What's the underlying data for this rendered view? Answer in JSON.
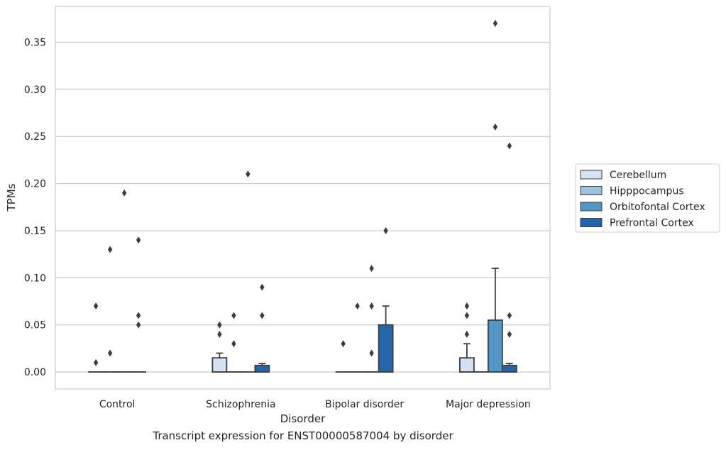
{
  "chart_data": {
    "type": "box",
    "xlabel": "Disorder",
    "ylabel": "TPMs",
    "caption": "Transcript expression for ENST00000587004 by disorder",
    "ylim": [
      -0.018,
      0.388
    ],
    "yticks": [
      0.0,
      0.05,
      0.1,
      0.15,
      0.2,
      0.25,
      0.3,
      0.35
    ],
    "ytick_labels": [
      "0.00",
      "0.05",
      "0.10",
      "0.15",
      "0.20",
      "0.25",
      "0.30",
      "0.35"
    ],
    "grid": "horizontal",
    "legend_position": "right",
    "categories": [
      "Control",
      "Schizophrenia",
      "Bipolar disorder",
      "Major depression"
    ],
    "series": [
      {
        "name": "Cerebellum",
        "color": "#d4e3f2",
        "boxes": [
          {
            "q1": 0,
            "median": 0,
            "q3": 0,
            "whisker_low": 0,
            "whisker_high": 0,
            "outliers": [
              0.07,
              0.01
            ]
          },
          {
            "q1": 0,
            "median": 0,
            "q3": 0.015,
            "whisker_low": 0,
            "whisker_high": 0.02,
            "outliers": [
              0.05,
              0.04
            ]
          },
          {
            "q1": 0,
            "median": 0,
            "q3": 0,
            "whisker_low": 0,
            "whisker_high": 0,
            "outliers": [
              0.03
            ]
          },
          {
            "q1": 0,
            "median": 0,
            "q3": 0.015,
            "whisker_low": 0,
            "whisker_high": 0.03,
            "outliers": [
              0.07,
              0.06,
              0.04
            ]
          }
        ]
      },
      {
        "name": "Hipppocampus",
        "color": "#9dc3de",
        "boxes": [
          {
            "q1": 0,
            "median": 0,
            "q3": 0,
            "whisker_low": 0,
            "whisker_high": 0,
            "outliers": [
              0.13,
              0.02
            ]
          },
          {
            "q1": 0,
            "median": 0,
            "q3": 0,
            "whisker_low": 0,
            "whisker_high": 0,
            "outliers": [
              0.06,
              0.03
            ]
          },
          {
            "q1": 0,
            "median": 0,
            "q3": 0,
            "whisker_low": 0,
            "whisker_high": 0,
            "outliers": [
              0.07
            ]
          },
          {
            "q1": 0,
            "median": 0,
            "q3": 0,
            "whisker_low": 0,
            "whisker_high": 0,
            "outliers": []
          }
        ]
      },
      {
        "name": "Orbitofontal Cortex",
        "color": "#5496c5",
        "boxes": [
          {
            "q1": 0,
            "median": 0,
            "q3": 0,
            "whisker_low": 0,
            "whisker_high": 0,
            "outliers": [
              0.19
            ]
          },
          {
            "q1": 0,
            "median": 0,
            "q3": 0,
            "whisker_low": 0,
            "whisker_high": 0,
            "outliers": [
              0.21
            ]
          },
          {
            "q1": 0,
            "median": 0,
            "q3": 0,
            "whisker_low": 0,
            "whisker_high": 0,
            "outliers": [
              0.11,
              0.07,
              0.02
            ]
          },
          {
            "q1": 0,
            "median": 0,
            "q3": 0.055,
            "whisker_low": 0,
            "whisker_high": 0.11,
            "outliers": [
              0.37,
              0.26
            ]
          }
        ]
      },
      {
        "name": "Prefrontal Cortex",
        "color": "#2566a8",
        "boxes": [
          {
            "q1": 0,
            "median": 0,
            "q3": 0,
            "whisker_low": 0,
            "whisker_high": 0,
            "outliers": [
              0.14,
              0.06,
              0.05
            ]
          },
          {
            "q1": 0,
            "median": 0,
            "q3": 0.007,
            "whisker_low": 0,
            "whisker_high": 0.009,
            "outliers": [
              0.09,
              0.06
            ]
          },
          {
            "q1": 0,
            "median": 0,
            "q3": 0.05,
            "whisker_low": 0,
            "whisker_high": 0.07,
            "outliers": [
              0.15
            ]
          },
          {
            "q1": 0,
            "median": 0,
            "q3": 0.007,
            "whisker_low": 0,
            "whisker_high": 0.009,
            "outliers": [
              0.24,
              0.06,
              0.04
            ]
          }
        ]
      }
    ]
  }
}
